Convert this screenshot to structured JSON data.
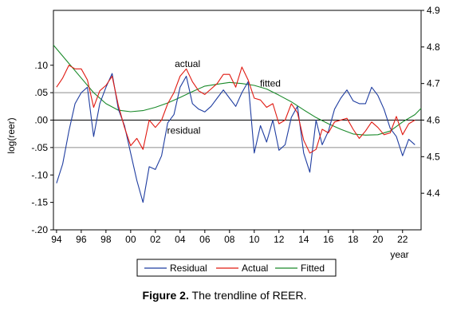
{
  "caption": {
    "figure_label": "Figure 2.",
    "text": " The trendline of REER."
  },
  "chart_data": {
    "type": "line",
    "xlabel": "year",
    "ylabel_left": "log(reer)",
    "x_tick_labels": [
      "94",
      "96",
      "98",
      "00",
      "02",
      "04",
      "06",
      "08",
      "10",
      "12",
      "14",
      "16",
      "18",
      "20",
      "22"
    ],
    "x_tick_years": [
      1994,
      1996,
      1998,
      2000,
      2002,
      2004,
      2006,
      2008,
      2010,
      2012,
      2014,
      2016,
      2018,
      2020,
      2022
    ],
    "xlim": [
      1993.75,
      2023.5
    ],
    "left_axis": {
      "ticks": [
        -0.2,
        -0.15,
        -0.1,
        -0.05,
        0.0,
        0.05,
        0.1
      ],
      "tick_labels": [
        "-.20",
        "-.15",
        "-.10",
        "-.05",
        ".00",
        ".05",
        ".10"
      ],
      "ylim": [
        -0.2,
        0.2
      ]
    },
    "right_axis": {
      "ticks": [
        4.4,
        4.5,
        4.6,
        4.7,
        4.8,
        4.9
      ],
      "tick_labels": [
        "4.4",
        "4.5",
        "4.6",
        "4.7",
        "4.8",
        "4.9"
      ],
      "ylim": [
        4.3,
        4.9
      ]
    },
    "reference_lines_left": [
      0.05,
      0.0,
      -0.05
    ],
    "annotations": [
      {
        "text": "actual",
        "x": 2004.6,
        "y": 4.745,
        "axis": "right"
      },
      {
        "text": "fitted",
        "x": 2011.3,
        "y": 4.692,
        "axis": "right"
      },
      {
        "text": "residual",
        "x": 2004.3,
        "y": -0.025,
        "axis": "left"
      }
    ],
    "legend": {
      "position": "bottom",
      "entries": [
        "Residual",
        "Actual",
        "Fitted"
      ]
    },
    "series": [
      {
        "name": "Residual",
        "axis": "left",
        "color": "#1f3da0",
        "x": [
          1994,
          1994.5,
          1995,
          1995.5,
          1996,
          1996.5,
          1997,
          1997.5,
          1998,
          1998.5,
          1999,
          1999.5,
          2000,
          2000.5,
          2001,
          2001.5,
          2002,
          2002.5,
          2003,
          2003.5,
          2004,
          2004.5,
          2005,
          2005.5,
          2006,
          2006.5,
          2007,
          2007.5,
          2008,
          2008.5,
          2009,
          2009.5,
          2010,
          2010.5,
          2011,
          2011.5,
          2012,
          2012.5,
          2013,
          2013.5,
          2014,
          2014.5,
          2015,
          2015.5,
          2016,
          2016.5,
          2017,
          2017.5,
          2018,
          2018.5,
          2019,
          2019.5,
          2020,
          2020.5,
          2021,
          2021.5,
          2022,
          2022.5,
          2023
        ],
        "y": [
          -0.115,
          -0.08,
          -0.02,
          0.03,
          0.05,
          0.06,
          -0.03,
          0.03,
          0.06,
          0.085,
          0.02,
          -0.01,
          -0.06,
          -0.11,
          -0.15,
          -0.085,
          -0.09,
          -0.065,
          -0.005,
          0.01,
          0.06,
          0.08,
          0.03,
          0.02,
          0.015,
          0.025,
          0.04,
          0.055,
          0.04,
          0.025,
          0.05,
          0.07,
          -0.06,
          -0.01,
          -0.04,
          0.0,
          -0.055,
          -0.045,
          0.005,
          0.025,
          -0.06,
          -0.095,
          0.0,
          -0.045,
          -0.02,
          0.02,
          0.04,
          0.055,
          0.035,
          0.03,
          0.03,
          0.06,
          0.045,
          0.02,
          -0.015,
          -0.03,
          -0.065,
          -0.035,
          -0.045
        ]
      },
      {
        "name": "Actual",
        "axis": "right",
        "color": "#e01a12",
        "x": [
          1994,
          1994.5,
          1995,
          1995.5,
          1996,
          1996.5,
          1997,
          1997.5,
          1998,
          1998.5,
          1999,
          1999.5,
          2000,
          2000.5,
          2001,
          2001.5,
          2002,
          2002.5,
          2003,
          2003.5,
          2004,
          2004.5,
          2005,
          2005.5,
          2006,
          2006.5,
          2007,
          2007.5,
          2008,
          2008.5,
          2009,
          2009.5,
          2010,
          2010.5,
          2011,
          2011.5,
          2012,
          2012.5,
          2013,
          2013.5,
          2014,
          2014.5,
          2015,
          2015.5,
          2016,
          2016.5,
          2017,
          2017.5,
          2018,
          2018.5,
          2019,
          2019.5,
          2020,
          2020.5,
          2021,
          2021.5,
          2022,
          2022.5,
          2023
        ],
        "y": [
          4.69,
          4.715,
          4.75,
          4.74,
          4.74,
          4.71,
          4.635,
          4.68,
          4.695,
          4.72,
          4.64,
          4.58,
          4.53,
          4.55,
          4.52,
          4.6,
          4.58,
          4.6,
          4.645,
          4.675,
          4.72,
          4.74,
          4.705,
          4.68,
          4.67,
          4.685,
          4.7,
          4.725,
          4.725,
          4.69,
          4.745,
          4.71,
          4.66,
          4.655,
          4.635,
          4.645,
          4.59,
          4.6,
          4.645,
          4.62,
          4.545,
          4.51,
          4.52,
          4.575,
          4.565,
          4.595,
          4.6,
          4.605,
          4.575,
          4.55,
          4.57,
          4.595,
          4.58,
          4.56,
          4.565,
          4.61,
          4.56,
          4.59,
          4.6
        ]
      },
      {
        "name": "Fitted",
        "axis": "right",
        "color": "#1a8a2a",
        "x": [
          1993.75,
          1994,
          1995,
          1996,
          1997,
          1998,
          1999,
          2000,
          2001,
          2002,
          2003,
          2004,
          2005,
          2006,
          2007,
          2008,
          2009,
          2010,
          2011,
          2012,
          2013,
          2014,
          2015,
          2016,
          2017,
          2018,
          2019,
          2020,
          2021,
          2022,
          2023,
          2023.5
        ],
        "y": [
          4.805,
          4.795,
          4.755,
          4.715,
          4.675,
          4.645,
          4.627,
          4.623,
          4.626,
          4.635,
          4.647,
          4.662,
          4.678,
          4.693,
          4.698,
          4.703,
          4.7,
          4.695,
          4.685,
          4.668,
          4.65,
          4.628,
          4.607,
          4.59,
          4.575,
          4.562,
          4.559,
          4.56,
          4.57,
          4.595,
          4.615,
          4.632
        ]
      }
    ]
  }
}
